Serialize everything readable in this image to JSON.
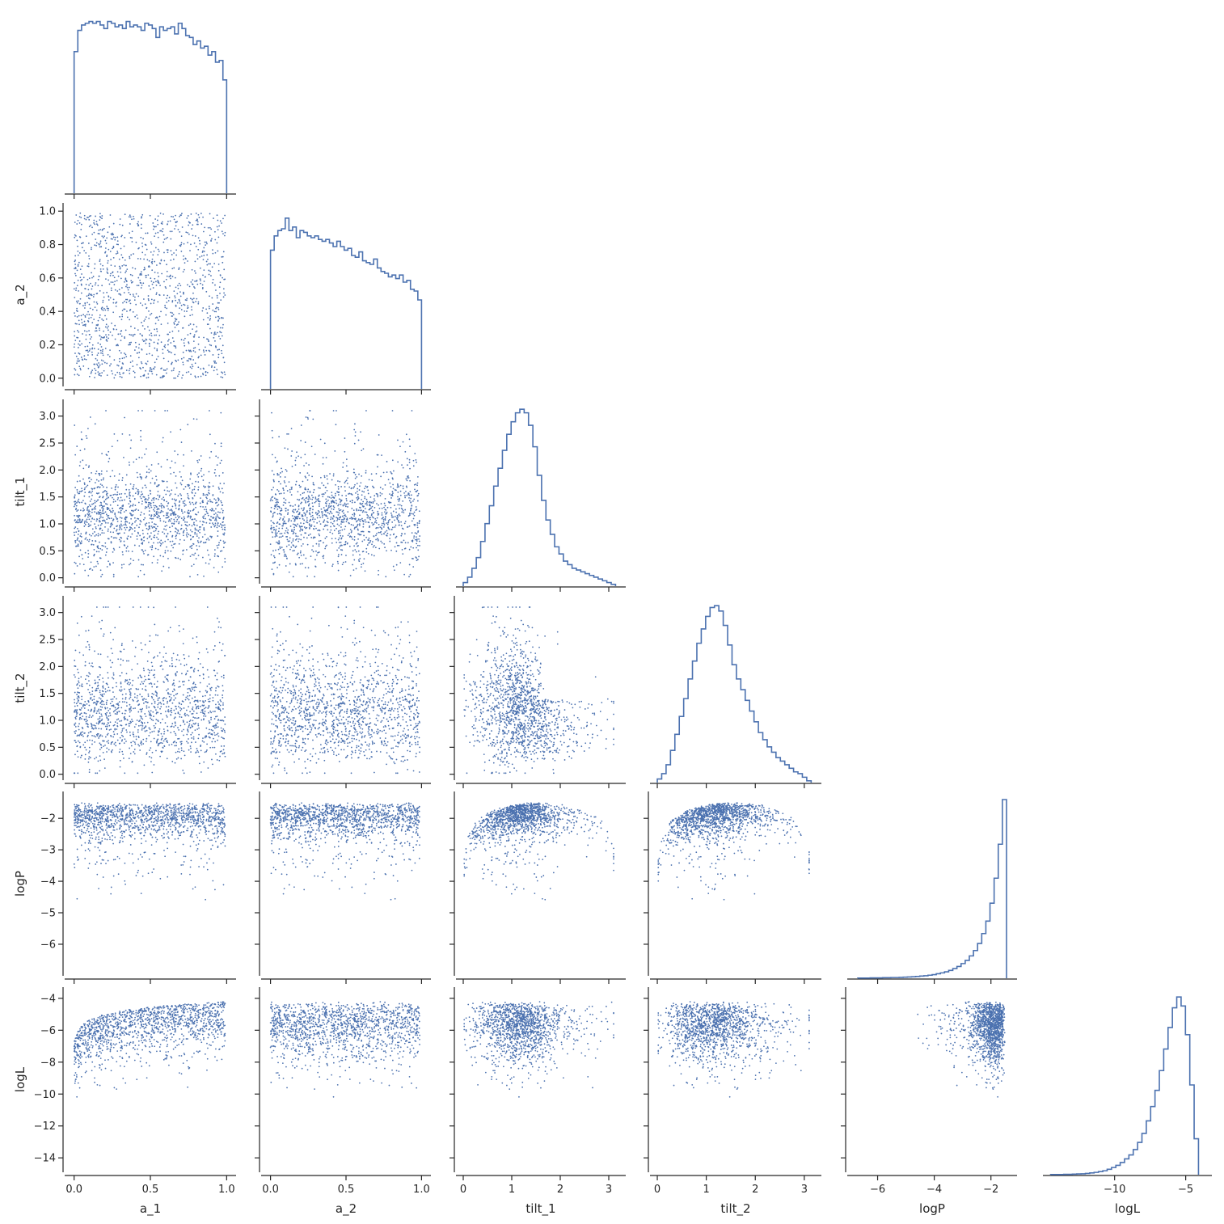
{
  "chart_data": {
    "type": "corner",
    "variables": [
      "a_1",
      "a_2",
      "tilt_1",
      "tilt_2",
      "logP",
      "logL"
    ],
    "axis_labels": {
      "x": [
        "a_1",
        "a_2",
        "tilt_1",
        "tilt_2",
        "logP",
        "logL"
      ],
      "y": [
        "a_2",
        "tilt_1",
        "tilt_2",
        "logP",
        "logL"
      ]
    },
    "ranges": {
      "a_1": [
        -0.03,
        1.03
      ],
      "a_2": [
        -0.03,
        1.03
      ],
      "tilt_1": [
        -0.05,
        3.25
      ],
      "tilt_2": [
        -0.05,
        3.25
      ],
      "logP": [
        -6.9,
        -1.25
      ],
      "logL": [
        -14.7,
        -3.5
      ]
    },
    "ticks": {
      "a_1": [
        0.0,
        0.5,
        1.0
      ],
      "a_2": [
        0.0,
        0.2,
        0.4,
        0.6,
        0.8,
        1.0
      ],
      "a_2_x": [
        0.0,
        0.5,
        1.0
      ],
      "tilt_1": [
        0.0,
        0.5,
        1.0,
        1.5,
        2.0,
        2.5,
        3.0
      ],
      "tilt_1_x": [
        0,
        1,
        2,
        3
      ],
      "tilt_2": [
        0.0,
        0.5,
        1.0,
        1.5,
        2.0,
        2.5,
        3.0
      ],
      "tilt_2_x": [
        0,
        1,
        2,
        3
      ],
      "logP": [
        -6,
        -5,
        -4,
        -3,
        -2
      ],
      "logP_x": [
        -6,
        -4,
        -2
      ],
      "logL": [
        -14,
        -12,
        -10,
        -8,
        -6,
        -4
      ],
      "logL_x": [
        -10,
        -5
      ]
    },
    "tick_labels": {
      "a_1": [
        "0.0",
        "0.5",
        "1.0"
      ],
      "a_2_x": [
        "0.0",
        "0.5",
        "1.0"
      ],
      "a_2": [
        "0.0",
        "0.2",
        "0.4",
        "0.6",
        "0.8",
        "1.0"
      ],
      "tilt_1": [
        "0.0",
        "0.5",
        "1.0",
        "1.5",
        "2.0",
        "2.5",
        "3.0"
      ],
      "tilt_1_x": [
        "0",
        "1",
        "2",
        "3"
      ],
      "tilt_2": [
        "0.0",
        "0.5",
        "1.0",
        "1.5",
        "2.0",
        "2.5",
        "3.0"
      ],
      "tilt_2_x": [
        "0",
        "1",
        "2",
        "3"
      ],
      "logP": [
        "−6",
        "−5",
        "−4",
        "−3",
        "−2"
      ],
      "logP_x": [
        "−6",
        "−4",
        "−2"
      ],
      "logL": [
        "−14",
        "−12",
        "−10",
        "−8",
        "−6",
        "−4"
      ],
      "logL_x": [
        "−10",
        "−5"
      ]
    },
    "histograms": {
      "a_1": {
        "range": [
          0,
          1
        ],
        "heights": [
          0.8,
          0.92,
          0.95,
          0.96,
          0.97,
          0.96,
          0.97,
          0.95,
          0.93,
          0.97,
          0.96,
          0.94,
          0.95,
          0.93,
          0.97,
          0.94,
          0.95,
          0.94,
          0.92,
          0.96,
          0.95,
          0.93,
          0.88,
          0.94,
          0.92,
          0.93,
          0.94,
          0.9,
          0.96,
          0.93,
          0.89,
          0.88,
          0.84,
          0.86,
          0.82,
          0.83,
          0.78,
          0.8,
          0.74,
          0.75,
          0.64
        ]
      },
      "a_2": {
        "range": [
          0,
          1
        ],
        "heights": [
          0.78,
          0.86,
          0.89,
          0.9,
          0.96,
          0.89,
          0.91,
          0.85,
          0.89,
          0.88,
          0.86,
          0.85,
          0.86,
          0.84,
          0.83,
          0.84,
          0.82,
          0.8,
          0.83,
          0.8,
          0.78,
          0.79,
          0.75,
          0.74,
          0.77,
          0.72,
          0.71,
          0.7,
          0.73,
          0.68,
          0.66,
          0.65,
          0.63,
          0.64,
          0.62,
          0.64,
          0.6,
          0.61,
          0.56,
          0.55,
          0.5
        ]
      },
      "tilt_1": {
        "range": [
          0,
          3.14
        ],
        "heights": [
          0.02,
          0.05,
          0.1,
          0.16,
          0.25,
          0.35,
          0.45,
          0.56,
          0.66,
          0.76,
          0.85,
          0.92,
          0.97,
          0.99,
          0.97,
          0.9,
          0.78,
          0.62,
          0.48,
          0.37,
          0.29,
          0.22,
          0.18,
          0.14,
          0.12,
          0.1,
          0.09,
          0.08,
          0.07,
          0.06,
          0.05,
          0.04,
          0.03,
          0.02,
          0.01
        ]
      },
      "tilt_2": {
        "range": [
          0,
          3.14
        ],
        "heights": [
          0.02,
          0.05,
          0.1,
          0.18,
          0.27,
          0.37,
          0.47,
          0.58,
          0.68,
          0.78,
          0.86,
          0.93,
          0.98,
          0.99,
          0.96,
          0.88,
          0.77,
          0.66,
          0.58,
          0.52,
          0.46,
          0.4,
          0.34,
          0.28,
          0.24,
          0.2,
          0.17,
          0.14,
          0.12,
          0.1,
          0.08,
          0.06,
          0.05,
          0.03,
          0.01
        ]
      },
      "logP": {
        "range": [
          -6.7,
          -1.45
        ],
        "heights": [
          0.001,
          0.001,
          0.001,
          0.002,
          0.002,
          0.002,
          0.003,
          0.003,
          0.004,
          0.004,
          0.005,
          0.006,
          0.007,
          0.008,
          0.01,
          0.012,
          0.014,
          0.017,
          0.02,
          0.025,
          0.03,
          0.036,
          0.044,
          0.054,
          0.066,
          0.082,
          0.1,
          0.125,
          0.155,
          0.195,
          0.25,
          0.32,
          0.42,
          0.56,
          0.75,
          1.0
        ]
      },
      "logL": {
        "range": [
          -14.5,
          -4.1
        ],
        "heights": [
          0.001,
          0.001,
          0.001,
          0.002,
          0.002,
          0.003,
          0.004,
          0.005,
          0.007,
          0.01,
          0.013,
          0.017,
          0.022,
          0.03,
          0.04,
          0.052,
          0.068,
          0.088,
          0.11,
          0.14,
          0.18,
          0.23,
          0.3,
          0.38,
          0.47,
          0.58,
          0.7,
          0.82,
          0.93,
          0.99,
          0.94,
          0.78,
          0.5,
          0.2
        ]
      }
    }
  }
}
